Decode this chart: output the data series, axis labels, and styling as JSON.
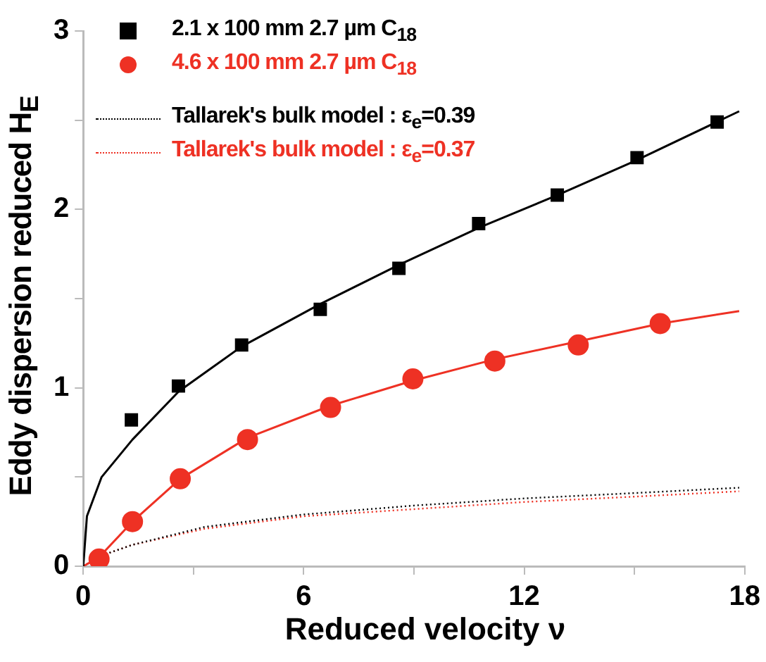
{
  "chart_data": {
    "type": "scatter",
    "xlabel": "Reduced velocity ν",
    "ylabel": "Eddy dispersion reduced H$_{E}$",
    "xlim": [
      0,
      18
    ],
    "xticks": [
      0,
      {
        "value": 3,
        "label": null
      },
      6,
      {
        "value": 9,
        "label": null
      },
      12,
      {
        "value": 15,
        "label": null
      },
      18
    ],
    "ylim": [
      0,
      3
    ],
    "yticks": [
      0,
      {
        "value": 0.5,
        "label": null
      },
      1,
      {
        "value": 1.5,
        "label": null
      },
      2,
      {
        "value": 2.5,
        "label": null
      },
      3
    ],
    "grid": false,
    "legend": "top left",
    "series": [
      {
        "name": "2.1 x 100 mm 2.7 µm C$_{18}$",
        "marker": "square",
        "color": "#000000",
        "x": [
          1.31,
          2.59,
          4.31,
          6.45,
          8.59,
          10.76,
          12.9,
          15.07,
          17.25
        ],
        "values": [
          0.82,
          1.01,
          1.24,
          1.44,
          1.67,
          1.92,
          2.08,
          2.29,
          2.49
        ]
      },
      {
        "name": "4.6 x 100 mm 2.7 µm C$_{18}$",
        "marker": "circle",
        "color": "#ee3124",
        "x": [
          0.43,
          1.34,
          2.64,
          4.47,
          6.73,
          8.97,
          11.2,
          13.47,
          15.7
        ],
        "values": [
          0.04,
          0.25,
          0.49,
          0.71,
          0.89,
          1.05,
          1.15,
          1.24,
          1.36
        ]
      },
      {
        "type": "line",
        "marker": "none",
        "line_style": "solid",
        "color": "#000000",
        "x": [
          0,
          0.1,
          0.5,
          1.34,
          2.6,
          4.3,
          6.45,
          8.6,
          10.8,
          12.9,
          15,
          17.85
        ],
        "values": [
          0,
          0.28,
          0.5,
          0.71,
          0.98,
          1.23,
          1.47,
          1.69,
          1.9,
          2.08,
          2.27,
          2.55
        ]
      },
      {
        "type": "line",
        "marker": "none",
        "line_style": "solid",
        "color": "#ee3124",
        "x": [
          0,
          0.43,
          1.34,
          2.64,
          4.47,
          6.73,
          8.97,
          11.2,
          13.47,
          15.7,
          17.85
        ],
        "values": [
          0,
          0.05,
          0.25,
          0.49,
          0.72,
          0.9,
          1.04,
          1.16,
          1.26,
          1.36,
          1.43
        ]
      },
      {
        "name": "Tallarek's bulk model : ε$_{e}$=0.39",
        "type": "line",
        "marker": "none",
        "line_style": "dotted",
        "color": "#000000",
        "x": [
          0,
          0.5,
          1.34,
          3.3,
          6,
          9,
          12,
          15,
          17.85
        ],
        "values": [
          0,
          0.06,
          0.12,
          0.22,
          0.29,
          0.34,
          0.38,
          0.41,
          0.44
        ]
      },
      {
        "name": "Tallarek's bulk model : ε$_{e}$=0.37",
        "type": "line",
        "marker": "none",
        "line_style": "dotted",
        "color": "#ee3124",
        "x": [
          0,
          0.5,
          1.34,
          3.3,
          6,
          9,
          12,
          15,
          17.85
        ],
        "values": [
          0,
          0.06,
          0.12,
          0.21,
          0.28,
          0.32,
          0.36,
          0.39,
          0.42
        ]
      }
    ]
  }
}
